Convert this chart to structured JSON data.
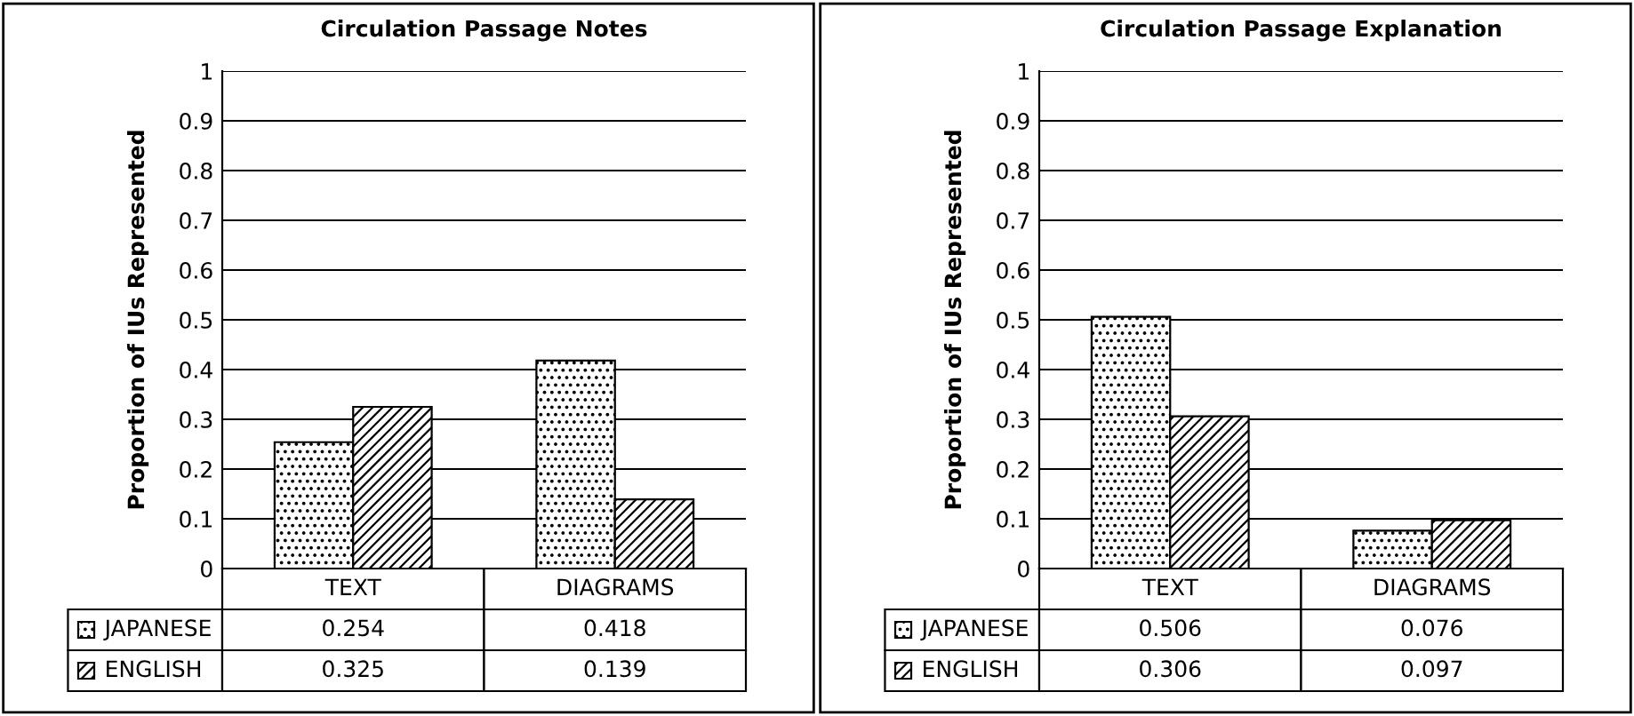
{
  "chart_data": [
    {
      "type": "bar",
      "title": "Circulation Passage Notes",
      "ylabel": "Proportion of IUs Represented",
      "categories": [
        "TEXT",
        "DIAGRAMS"
      ],
      "series": [
        {
          "name": "JAPANESE",
          "color": "#000000",
          "values": [
            0.254,
            0.418
          ]
        },
        {
          "name": "ENGLISH",
          "color": "#000000",
          "values": [
            0.325,
            0.139
          ]
        }
      ],
      "ylim": [
        0,
        1
      ],
      "yticks": [
        0,
        0.1,
        0.2,
        0.3,
        0.4,
        0.5,
        0.6,
        0.7,
        0.8,
        0.9,
        1
      ],
      "grid": "y",
      "tick_labels": "y",
      "data_labels": true,
      "legend": "bottom"
    },
    {
      "type": "bar",
      "title": "Circulation Passage Explanation",
      "ylabel": "Proportion of IUs Represented",
      "categories": [
        "TEXT",
        "DIAGRAMS"
      ],
      "series": [
        {
          "name": "JAPANESE",
          "color": "#000000",
          "values": [
            0.506,
            0.076
          ]
        },
        {
          "name": "ENGLISH",
          "color": "#000000",
          "values": [
            0.306,
            0.097
          ]
        }
      ],
      "ylim": [
        0,
        1
      ],
      "yticks": [
        0,
        0.1,
        0.2,
        0.3,
        0.4,
        0.5,
        0.6,
        0.7,
        0.8,
        0.9,
        1
      ],
      "grid": "y",
      "tick_labels": "y",
      "data_labels": true,
      "legend": "bottom"
    }
  ]
}
